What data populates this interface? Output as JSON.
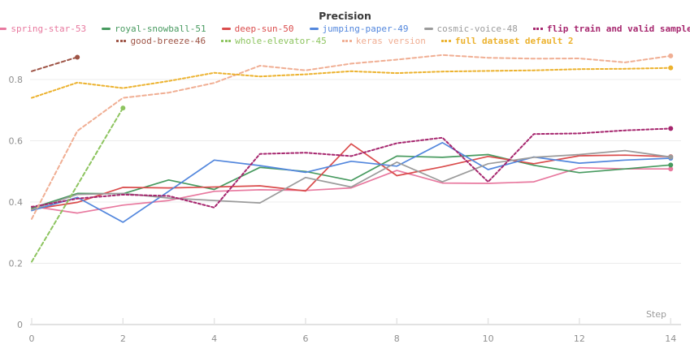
{
  "title": "Precision",
  "axes": {
    "x_label": "Step",
    "x_ticks": [
      0,
      2,
      4,
      6,
      8,
      10,
      12,
      14
    ],
    "y_ticks": [
      "0",
      "0.2",
      "0.4",
      "0.6",
      "0.8"
    ],
    "y_tick_values": [
      0,
      0.2,
      0.4,
      0.6,
      0.8
    ]
  },
  "chart_data": {
    "type": "line",
    "title": "Precision",
    "xlabel": "Step",
    "x": [
      0,
      1,
      2,
      3,
      4,
      5,
      6,
      7,
      8,
      9,
      10,
      11,
      12,
      13,
      14
    ],
    "xlim": [
      0,
      14
    ],
    "ylim": [
      0,
      0.9
    ],
    "grid": true,
    "legend_position": "top",
    "series": [
      {
        "name": "spring-star-53",
        "color": "#E8799F",
        "dashed": false,
        "bold": false,
        "legend_row": 1,
        "values": [
          0.386,
          0.364,
          0.39,
          0.405,
          0.435,
          0.44,
          0.438,
          0.446,
          0.503,
          0.462,
          0.461,
          0.466,
          0.512,
          0.508,
          0.508
        ]
      },
      {
        "name": "royal-snowball-51",
        "color": "#479A5F",
        "dashed": false,
        "bold": false,
        "legend_row": 1,
        "values": [
          0.38,
          0.428,
          0.427,
          0.472,
          0.441,
          0.513,
          0.5,
          0.47,
          0.55,
          0.546,
          0.555,
          0.52,
          0.496,
          0.508,
          0.521
        ]
      },
      {
        "name": "deep-sun-50",
        "color": "#DA4C4C",
        "dashed": false,
        "bold": false,
        "legend_row": 1,
        "values": [
          0.376,
          0.399,
          0.448,
          0.446,
          0.449,
          0.453,
          0.436,
          0.59,
          0.486,
          0.515,
          0.549,
          0.525,
          0.551,
          0.553,
          0.548
        ]
      },
      {
        "name": "jumping-paper-49",
        "color": "#5387DD",
        "dashed": false,
        "bold": false,
        "legend_row": 1,
        "values": [
          0.372,
          0.415,
          0.334,
          0.435,
          0.537,
          0.519,
          0.497,
          0.533,
          0.517,
          0.594,
          0.506,
          0.547,
          0.527,
          0.537,
          0.543
        ]
      },
      {
        "name": "cosmic-voice-48",
        "color": "#9B9B9B",
        "dashed": false,
        "bold": false,
        "legend_row": 1,
        "values": [
          0.375,
          0.425,
          0.428,
          0.413,
          0.405,
          0.397,
          0.48,
          0.449,
          0.53,
          0.466,
          0.525,
          0.546,
          0.555,
          0.568,
          0.547
        ]
      },
      {
        "name": "flip train and valid sample",
        "color": "#A6266E",
        "dashed": true,
        "bold": true,
        "legend_row": 1,
        "values": [
          0.384,
          0.411,
          0.424,
          0.42,
          0.382,
          0.557,
          0.561,
          0.55,
          0.592,
          0.61,
          0.466,
          0.622,
          0.624,
          0.634,
          0.64
        ]
      },
      {
        "name": "good-breeze-46",
        "color": "#9E5446",
        "dashed": true,
        "bold": false,
        "legend_row": 2,
        "values": [
          0.827,
          0.873,
          null,
          null,
          null,
          null,
          null,
          null,
          null,
          null,
          null,
          null,
          null,
          null,
          null
        ]
      },
      {
        "name": "whole-elevator-45",
        "color": "#8DC45F",
        "dashed": true,
        "bold": false,
        "legend_row": 2,
        "values": [
          0.205,
          0.455,
          0.707,
          null,
          null,
          null,
          null,
          null,
          null,
          null,
          null,
          null,
          null,
          null,
          null
        ]
      },
      {
        "name": "keras version",
        "color": "#F0AE93",
        "dashed": true,
        "bold": false,
        "legend_row": 2,
        "values": [
          0.345,
          0.632,
          0.74,
          0.757,
          0.789,
          0.845,
          0.83,
          0.852,
          0.865,
          0.88,
          0.871,
          0.868,
          0.869,
          0.856,
          0.877
        ]
      },
      {
        "name": "full dataset default 2",
        "color": "#ECB22E",
        "dashed": true,
        "bold": true,
        "legend_row": 2,
        "values": [
          0.74,
          0.79,
          0.772,
          0.795,
          0.822,
          0.81,
          0.817,
          0.827,
          0.821,
          0.826,
          0.828,
          0.83,
          0.834,
          0.835,
          0.838
        ]
      }
    ]
  }
}
